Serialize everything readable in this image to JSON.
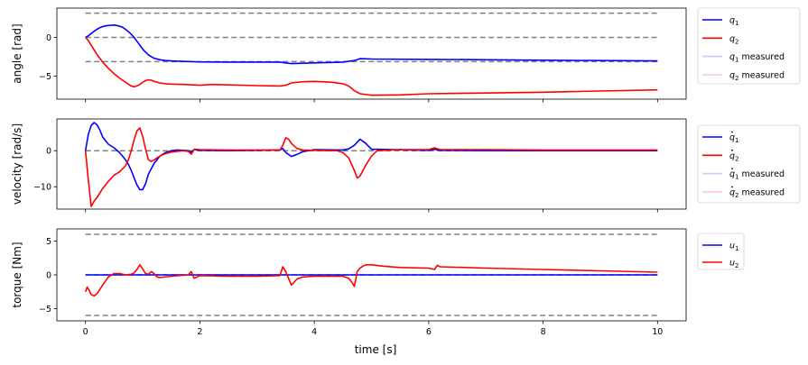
{
  "colors": {
    "blue": "#0000ff",
    "red": "#ff0000",
    "dashed": "#808080",
    "blue_meas": "#c9c9ff",
    "red_meas": "#ffc9c9"
  },
  "figure": {
    "xlabel": "time [s]"
  },
  "chart_data": [
    {
      "type": "line",
      "ylabel": "angle [rad]",
      "xlim": [
        -0.5,
        10.5
      ],
      "ylim": [
        -8.0,
        3.8
      ],
      "xticks": [
        0,
        2,
        4,
        6,
        8,
        10
      ],
      "yticks": [
        0,
        -5
      ],
      "ytick_labels": [
        "0",
        "−5"
      ],
      "hlines": [
        3.14,
        0,
        -3.14
      ],
      "legend_position": "outside-right",
      "series": [
        {
          "name": "q1",
          "sub": "1",
          "color": "#0000ff",
          "x": [
            0,
            0.05,
            0.1,
            0.15,
            0.2,
            0.25,
            0.3,
            0.35,
            0.4,
            0.45,
            0.5,
            0.55,
            0.6,
            0.65,
            0.7,
            0.75,
            0.8,
            0.85,
            0.9,
            0.95,
            1.0,
            1.05,
            1.1,
            1.15,
            1.2,
            1.3,
            1.4,
            1.5,
            1.7,
            1.9,
            2.0,
            2.5,
            3.0,
            3.4,
            3.5,
            3.6,
            4.0,
            4.5,
            4.7,
            4.8,
            5.0,
            6.0,
            7.0,
            8.0,
            9.0,
            10.0
          ],
          "y": [
            0,
            0.2,
            0.5,
            0.8,
            1.05,
            1.25,
            1.4,
            1.5,
            1.55,
            1.58,
            1.6,
            1.55,
            1.45,
            1.3,
            1.05,
            0.75,
            0.4,
            0.0,
            -0.5,
            -1.0,
            -1.5,
            -1.9,
            -2.25,
            -2.5,
            -2.7,
            -2.9,
            -3.0,
            -3.05,
            -3.1,
            -3.15,
            -3.17,
            -3.2,
            -3.2,
            -3.2,
            -3.3,
            -3.4,
            -3.3,
            -3.2,
            -3.0,
            -2.75,
            -2.8,
            -2.85,
            -2.9,
            -2.95,
            -3.0,
            -3.05
          ]
        },
        {
          "name": "q2",
          "sub": "2",
          "color": "#ff0000",
          "x": [
            0,
            0.05,
            0.1,
            0.2,
            0.3,
            0.4,
            0.5,
            0.6,
            0.7,
            0.8,
            0.85,
            0.9,
            0.95,
            1.0,
            1.05,
            1.1,
            1.15,
            1.2,
            1.3,
            1.4,
            1.5,
            1.7,
            1.9,
            2.0,
            2.2,
            2.5,
            3.0,
            3.4,
            3.5,
            3.6,
            3.8,
            4.0,
            4.3,
            4.5,
            4.6,
            4.7,
            4.8,
            5.0,
            5.5,
            6.0,
            7.0,
            8.0,
            9.0,
            10.0
          ],
          "y": [
            0,
            -0.4,
            -1.0,
            -2.2,
            -3.2,
            -4.0,
            -4.7,
            -5.3,
            -5.8,
            -6.3,
            -6.4,
            -6.3,
            -6.1,
            -5.8,
            -5.6,
            -5.5,
            -5.55,
            -5.7,
            -5.9,
            -6.0,
            -6.05,
            -6.1,
            -6.15,
            -6.2,
            -6.1,
            -6.15,
            -6.25,
            -6.3,
            -6.2,
            -5.9,
            -5.75,
            -5.7,
            -5.8,
            -6.0,
            -6.3,
            -6.9,
            -7.3,
            -7.5,
            -7.45,
            -7.3,
            -7.2,
            -7.1,
            -6.95,
            -6.8
          ]
        },
        {
          "name": "q1 measured",
          "sub": "1",
          "suffix": " measured",
          "color": "#c9c9ff",
          "x": [],
          "y": []
        },
        {
          "name": "q2 measured",
          "sub": "2",
          "suffix": " measured",
          "color": "#ffc9c9",
          "x": [],
          "y": []
        }
      ]
    },
    {
      "type": "line",
      "ylabel": "velocity [rad/s]",
      "xlim": [
        -0.5,
        10.5
      ],
      "ylim": [
        -16.2,
        8.8
      ],
      "xticks": [
        0,
        2,
        4,
        6,
        8,
        10
      ],
      "yticks": [
        0,
        -10
      ],
      "ytick_labels": [
        "0",
        "−10"
      ],
      "hlines": [
        0
      ],
      "legend_position": "outside-right",
      "series": [
        {
          "name": "q̇1",
          "sub": "1",
          "dot": true,
          "color": "#0000ff",
          "x": [
            0,
            0.05,
            0.1,
            0.15,
            0.2,
            0.25,
            0.3,
            0.4,
            0.5,
            0.6,
            0.7,
            0.75,
            0.8,
            0.85,
            0.9,
            0.95,
            1.0,
            1.05,
            1.1,
            1.2,
            1.3,
            1.4,
            1.5,
            1.6,
            1.7,
            1.8,
            1.85,
            1.9,
            2.0,
            2.5,
            3.0,
            3.4,
            3.45,
            3.5,
            3.6,
            3.7,
            3.8,
            4.0,
            4.5,
            4.6,
            4.7,
            4.8,
            4.9,
            5.0,
            6.0,
            6.1,
            6.2,
            7.0,
            8.0,
            9.0,
            10.0
          ],
          "y": [
            0,
            4.5,
            7.0,
            7.8,
            7.2,
            5.8,
            3.8,
            1.8,
            0.8,
            -0.6,
            -2.5,
            -3.8,
            -5.5,
            -7.5,
            -9.5,
            -10.8,
            -10.8,
            -9.2,
            -6.5,
            -3.5,
            -1.5,
            -0.5,
            0,
            0.2,
            0.1,
            0,
            -0.4,
            0.3,
            0.1,
            0,
            0.1,
            0.2,
            0.6,
            -0.5,
            -1.6,
            -1.0,
            -0.3,
            0.3,
            0.2,
            0.5,
            1.5,
            3.2,
            2.0,
            0.4,
            0.1,
            0.4,
            0.1,
            0,
            0,
            0,
            0
          ]
        },
        {
          "name": "q̇2",
          "sub": "2",
          "dot": true,
          "color": "#ff0000",
          "x": [
            0,
            0.05,
            0.1,
            0.15,
            0.2,
            0.3,
            0.4,
            0.5,
            0.6,
            0.7,
            0.75,
            0.8,
            0.85,
            0.9,
            0.95,
            1.0,
            1.05,
            1.1,
            1.15,
            1.2,
            1.25,
            1.3,
            1.4,
            1.5,
            1.7,
            1.8,
            1.85,
            1.9,
            2.0,
            2.5,
            3.0,
            3.4,
            3.45,
            3.5,
            3.55,
            3.6,
            3.7,
            3.8,
            4.0,
            4.4,
            4.5,
            4.6,
            4.7,
            4.75,
            4.8,
            4.9,
            5.0,
            5.1,
            5.5,
            6.0,
            6.1,
            6.2,
            7.0,
            8.0,
            9.0,
            10.0
          ],
          "y": [
            0,
            -8.0,
            -15.5,
            -14.0,
            -13.0,
            -10.5,
            -8.5,
            -6.8,
            -5.8,
            -4.2,
            -2.5,
            0.0,
            3.0,
            5.5,
            6.3,
            4.0,
            0.5,
            -2.5,
            -3.0,
            -2.6,
            -2.0,
            -1.5,
            -0.8,
            -0.4,
            0,
            -0.2,
            -1.0,
            0.4,
            0.3,
            0.2,
            0.2,
            0.2,
            1.5,
            3.6,
            3.2,
            2.0,
            0.6,
            0.2,
            0.1,
            0,
            -0.5,
            -2.0,
            -5.5,
            -7.6,
            -7.0,
            -4.0,
            -1.5,
            0,
            0.3,
            0.3,
            0.8,
            0.3,
            0.3,
            0.2,
            0.2,
            0.2
          ]
        },
        {
          "name": "q̇1 measured",
          "sub": "1",
          "dot": true,
          "suffix": " measured",
          "color": "#c9c9ff",
          "x": [],
          "y": []
        },
        {
          "name": "q̇2 measured",
          "sub": "2",
          "dot": true,
          "suffix": " measured",
          "color": "#ffc9c9",
          "x": [],
          "y": []
        }
      ]
    },
    {
      "type": "line",
      "ylabel": "torque [Nm]",
      "xlabel": "time [s]",
      "xlim": [
        -0.5,
        10.5
      ],
      "ylim": [
        -6.8,
        6.8
      ],
      "xticks": [
        0,
        2,
        4,
        6,
        8,
        10
      ],
      "xtick_labels": [
        "0",
        "2",
        "4",
        "6",
        "8",
        "10"
      ],
      "yticks": [
        5,
        0,
        -5
      ],
      "ytick_labels": [
        "5",
        "0",
        "−5"
      ],
      "hlines": [
        6,
        0,
        -6
      ],
      "legend_position": "outside-right",
      "series": [
        {
          "name": "u1",
          "sub": "1",
          "color": "#0000ff",
          "x": [
            0,
            10
          ],
          "y": [
            0,
            0
          ]
        },
        {
          "name": "u2",
          "sub": "2",
          "color": "#ff0000",
          "x": [
            0,
            0.03,
            0.06,
            0.1,
            0.15,
            0.2,
            0.3,
            0.4,
            0.5,
            0.6,
            0.7,
            0.8,
            0.85,
            0.9,
            0.95,
            1.0,
            1.05,
            1.1,
            1.15,
            1.2,
            1.25,
            1.3,
            1.5,
            1.8,
            1.85,
            1.9,
            2.0,
            2.5,
            3.0,
            3.4,
            3.45,
            3.5,
            3.55,
            3.6,
            3.7,
            3.8,
            4.0,
            4.5,
            4.6,
            4.65,
            4.7,
            4.75,
            4.8,
            4.85,
            4.9,
            5.0,
            5.2,
            5.5,
            6.0,
            6.1,
            6.15,
            6.2,
            7.0,
            8.0,
            9.0,
            10.0
          ],
          "y": [
            -2.5,
            -1.8,
            -2.2,
            -2.9,
            -3.1,
            -2.8,
            -1.5,
            -0.3,
            0.2,
            0.2,
            0,
            0.1,
            0.3,
            0.8,
            1.5,
            0.9,
            0.2,
            0.1,
            0.5,
            0.2,
            -0.3,
            -0.4,
            -0.2,
            0,
            0.5,
            -0.5,
            -0.1,
            -0.2,
            -0.2,
            -0.1,
            1.2,
            0.5,
            -0.5,
            -1.5,
            -0.6,
            -0.3,
            -0.2,
            -0.2,
            -0.5,
            -1.0,
            -1.7,
            0.5,
            1.0,
            1.3,
            1.5,
            1.5,
            1.3,
            1.1,
            1.0,
            0.8,
            1.4,
            1.2,
            1.0,
            0.8,
            0.6,
            0.4
          ]
        }
      ]
    }
  ]
}
